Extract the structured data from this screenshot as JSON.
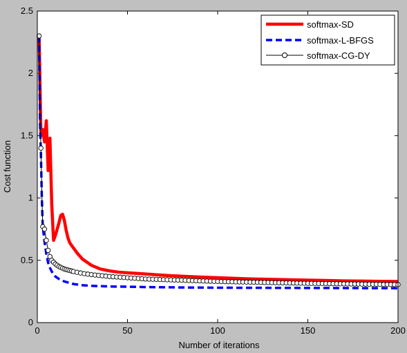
{
  "chart_data": {
    "type": "line",
    "xlabel": "Number of iterations",
    "ylabel": "Cost function",
    "xlim": [
      0,
      200
    ],
    "ylim": [
      0,
      2.5
    ],
    "xticks": [
      0,
      50,
      100,
      150,
      200
    ],
    "yticks": [
      0,
      0.5,
      1,
      1.5,
      2,
      2.5
    ],
    "xtick_labels": [
      "0",
      "50",
      "100",
      "150",
      "200"
    ],
    "ytick_labels": [
      "0",
      "0.5",
      "1",
      "1.5",
      "2",
      "2.5"
    ],
    "grid": false,
    "legend_position": "top-right",
    "background": "#c0c0c0",
    "plot_background": "#ffffff",
    "series": [
      {
        "name": "softmax-SD",
        "color": "#ff0000",
        "style": "solid-thick",
        "x": [
          1,
          2,
          3,
          4,
          5,
          6,
          7,
          8,
          9,
          10,
          11,
          12,
          13,
          14,
          15,
          16,
          17,
          18,
          20,
          22,
          25,
          28,
          30,
          35,
          40,
          45,
          50,
          60,
          70,
          80,
          90,
          100,
          110,
          120,
          130,
          140,
          150,
          160,
          170,
          180,
          190,
          200
        ],
        "y": [
          2.3,
          1.5,
          1.55,
          1.45,
          1.62,
          1.22,
          1.48,
          0.95,
          0.66,
          0.7,
          0.75,
          0.8,
          0.86,
          0.87,
          0.82,
          0.74,
          0.68,
          0.64,
          0.6,
          0.56,
          0.51,
          0.48,
          0.46,
          0.43,
          0.415,
          0.405,
          0.4,
          0.39,
          0.38,
          0.372,
          0.366,
          0.36,
          0.355,
          0.35,
          0.347,
          0.344,
          0.341,
          0.338,
          0.335,
          0.333,
          0.331,
          0.33
        ]
      },
      {
        "name": "softmax-L-BFGS",
        "color": "#0000ff",
        "style": "dashed-thick",
        "x": [
          1,
          1.5,
          2,
          2.5,
          3,
          4,
          5,
          6,
          7,
          8,
          10,
          12,
          15,
          20,
          25,
          30,
          40,
          50,
          60,
          80,
          100,
          150,
          200
        ],
        "y": [
          2.3,
          1.6,
          1.35,
          1.0,
          0.78,
          0.65,
          0.55,
          0.48,
          0.44,
          0.41,
          0.37,
          0.35,
          0.33,
          0.31,
          0.3,
          0.295,
          0.29,
          0.288,
          0.285,
          0.282,
          0.28,
          0.278,
          0.276
        ]
      },
      {
        "name": "softmax-CG-DY",
        "color": "#000000",
        "style": "solid-thin-circles",
        "x": [
          1,
          1.5,
          2,
          2.5,
          3,
          4,
          5,
          6,
          7,
          8,
          10,
          12,
          15,
          20,
          25,
          30,
          40,
          50,
          60,
          80,
          100,
          150,
          200
        ],
        "y": [
          2.3,
          1.7,
          1.4,
          1.05,
          0.77,
          0.75,
          0.66,
          0.58,
          0.53,
          0.5,
          0.47,
          0.45,
          0.43,
          0.41,
          0.395,
          0.385,
          0.37,
          0.36,
          0.35,
          0.34,
          0.33,
          0.315,
          0.305
        ]
      }
    ]
  }
}
